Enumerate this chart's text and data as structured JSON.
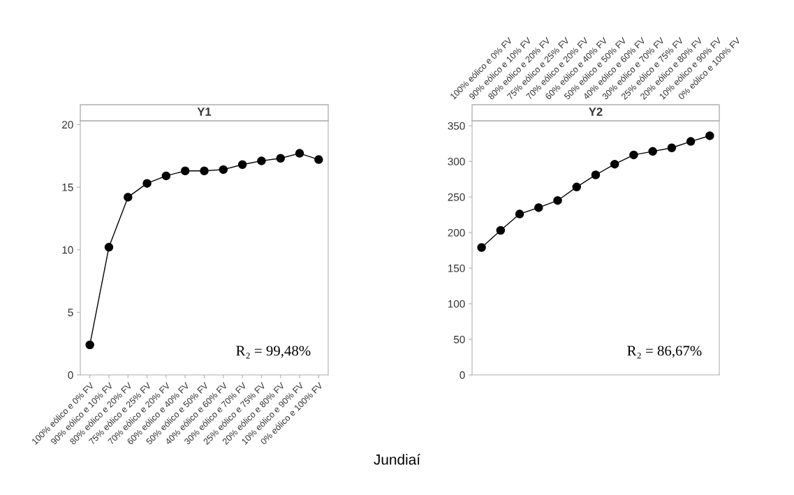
{
  "chart_data": [
    {
      "type": "line",
      "title": "Y1",
      "categories": [
        "100% eólico e 0% FV",
        "90% eólico e 10% FV",
        "80% eólico e 20% FV",
        "75% eólico e 25% FV",
        "70% eólico e 20% FV",
        "60% eólico e 40% FV",
        "50% eólico e 50% FV",
        "40% eólico e 60% FV",
        "30% eólico e 70% FV",
        "25% eólico e 75% FV",
        "20% eólico e 80% FV",
        "10% eólico e 90% FV",
        "0% eólico e 100% FV"
      ],
      "series": [
        {
          "color": "#000000",
          "values": [
            2.4,
            10.2,
            14.2,
            15.3,
            15.9,
            16.3,
            16.3,
            16.4,
            16.8,
            17.1,
            17.3,
            17.7,
            17.2
          ]
        }
      ],
      "ylim": [
        0,
        20.3
      ],
      "yticks": [
        0,
        5,
        10,
        15,
        20
      ],
      "marker": "circle",
      "grid": false,
      "legend": false,
      "annotations": [
        "R₂ = 99,48%",
        "Jundiaí"
      ]
    },
    {
      "type": "line",
      "title": "Y2",
      "categories": [
        "100% eólico e 0% FV",
        "90% eólico e 10% FV",
        "80% eólico e 20% FV",
        "75% eólico e 25% FV",
        "70% eólico e 20% FV",
        "60% eólico e 40% FV",
        "50% eólico e 50% FV",
        "40% eólico e 60% FV",
        "30% eólico e 70% FV",
        "25% eólico e 75% FV",
        "20% eólico e 80% FV",
        "10% eólico e 90% FV",
        "0% eólico e 100% FV"
      ],
      "series": [
        {
          "color": "#000000",
          "values": [
            179,
            203,
            226,
            235,
            245,
            264,
            281,
            296,
            309,
            314,
            319,
            328,
            336
          ]
        }
      ],
      "ylim": [
        0,
        357
      ],
      "yticks": [
        0,
        50,
        100,
        150,
        200,
        250,
        300,
        350
      ],
      "marker": "circle",
      "grid": false,
      "legend": false,
      "annotations": [
        "R₂ = 86,67%"
      ]
    }
  ]
}
